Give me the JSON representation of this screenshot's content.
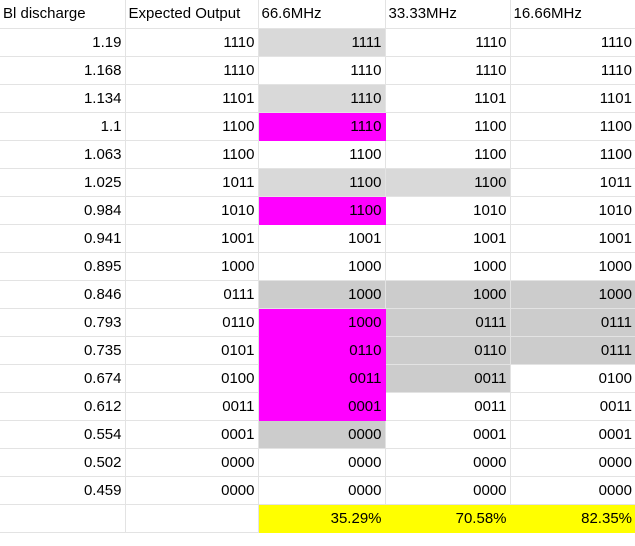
{
  "headers": [
    "Bl discharge",
    "Expected Output",
    "66.6MHz",
    "33.33MHz",
    "16.66MHz"
  ],
  "colors": {
    "magenta": "#ff00ff",
    "light_gray": "#d9d9d9",
    "gray": "#cccccc",
    "yellow": "#ffff00"
  },
  "rows": [
    {
      "v": "1.19",
      "exp": "1110",
      "f66": {
        "t": "1111",
        "c": "light_gray"
      },
      "f33": {
        "t": "1110",
        "c": ""
      },
      "f16": {
        "t": "1110",
        "c": ""
      }
    },
    {
      "v": "1.168",
      "exp": "1110",
      "f66": {
        "t": "1110",
        "c": ""
      },
      "f33": {
        "t": "1110",
        "c": ""
      },
      "f16": {
        "t": "1110",
        "c": ""
      }
    },
    {
      "v": "1.134",
      "exp": "1101",
      "f66": {
        "t": "1110",
        "c": "light_gray"
      },
      "f33": {
        "t": "1101",
        "c": ""
      },
      "f16": {
        "t": "1101",
        "c": ""
      }
    },
    {
      "v": "1.1",
      "exp": "1100",
      "f66": {
        "t": "1110",
        "c": "magenta"
      },
      "f33": {
        "t": "1100",
        "c": ""
      },
      "f16": {
        "t": "1100",
        "c": ""
      }
    },
    {
      "v": "1.063",
      "exp": "1100",
      "f66": {
        "t": "1100",
        "c": ""
      },
      "f33": {
        "t": "1100",
        "c": ""
      },
      "f16": {
        "t": "1100",
        "c": ""
      }
    },
    {
      "v": "1.025",
      "exp": "1011",
      "f66": {
        "t": "1100",
        "c": "light_gray"
      },
      "f33": {
        "t": "1100",
        "c": "light_gray"
      },
      "f16": {
        "t": "1011",
        "c": ""
      }
    },
    {
      "v": "0.984",
      "exp": "1010",
      "f66": {
        "t": "1100",
        "c": "magenta"
      },
      "f33": {
        "t": "1010",
        "c": ""
      },
      "f16": {
        "t": "1010",
        "c": ""
      }
    },
    {
      "v": "0.941",
      "exp": "1001",
      "f66": {
        "t": "1001",
        "c": ""
      },
      "f33": {
        "t": "1001",
        "c": ""
      },
      "f16": {
        "t": "1001",
        "c": ""
      }
    },
    {
      "v": "0.895",
      "exp": "1000",
      "f66": {
        "t": "1000",
        "c": ""
      },
      "f33": {
        "t": "1000",
        "c": ""
      },
      "f16": {
        "t": "1000",
        "c": ""
      }
    },
    {
      "v": "0.846",
      "exp": "0111",
      "f66": {
        "t": "1000",
        "c": "gray"
      },
      "f33": {
        "t": "1000",
        "c": "gray"
      },
      "f16": {
        "t": "1000",
        "c": "gray"
      }
    },
    {
      "v": "0.793",
      "exp": "0110",
      "f66": {
        "t": "1000",
        "c": "magenta"
      },
      "f33": {
        "t": "0111",
        "c": "gray"
      },
      "f16": {
        "t": "0111",
        "c": "gray"
      }
    },
    {
      "v": "0.735",
      "exp": "0101",
      "f66": {
        "t": "0110",
        "c": "magenta"
      },
      "f33": {
        "t": "0110",
        "c": "gray"
      },
      "f16": {
        "t": "0111",
        "c": "gray"
      }
    },
    {
      "v": "0.674",
      "exp": "0100",
      "f66": {
        "t": "0011",
        "c": "magenta"
      },
      "f33": {
        "t": "0011",
        "c": "gray"
      },
      "f16": {
        "t": "0100",
        "c": ""
      }
    },
    {
      "v": "0.612",
      "exp": "0011",
      "f66": {
        "t": "0001",
        "c": "magenta"
      },
      "f33": {
        "t": "0011",
        "c": ""
      },
      "f16": {
        "t": "0011",
        "c": ""
      }
    },
    {
      "v": "0.554",
      "exp": "0001",
      "f66": {
        "t": "0000",
        "c": "gray"
      },
      "f33": {
        "t": "0001",
        "c": ""
      },
      "f16": {
        "t": "0001",
        "c": ""
      }
    },
    {
      "v": "0.502",
      "exp": "0000",
      "f66": {
        "t": "0000",
        "c": ""
      },
      "f33": {
        "t": "0000",
        "c": ""
      },
      "f16": {
        "t": "0000",
        "c": ""
      }
    },
    {
      "v": "0.459",
      "exp": "0000",
      "f66": {
        "t": "0000",
        "c": ""
      },
      "f33": {
        "t": "0000",
        "c": ""
      },
      "f16": {
        "t": "0000",
        "c": ""
      }
    }
  ],
  "totals": {
    "v": "",
    "exp": "",
    "f66": "35.29%",
    "f33": "70.58%",
    "f16": "82.35%"
  }
}
